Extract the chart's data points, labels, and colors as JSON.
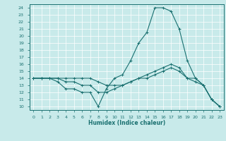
{
  "title": "",
  "xlabel": "Humidex (Indice chaleur)",
  "background_color": "#c8eaea",
  "grid_color": "#ffffff",
  "line_color": "#1a7070",
  "xlim": [
    -0.5,
    23.5
  ],
  "ylim": [
    9.5,
    24.5
  ],
  "xticks": [
    0,
    1,
    2,
    3,
    4,
    5,
    6,
    7,
    8,
    9,
    10,
    11,
    12,
    13,
    14,
    15,
    16,
    17,
    18,
    19,
    20,
    21,
    22,
    23
  ],
  "yticks": [
    10,
    11,
    12,
    13,
    14,
    15,
    16,
    17,
    18,
    19,
    20,
    21,
    22,
    23,
    24
  ],
  "series1_x": [
    0,
    1,
    2,
    3,
    4,
    5,
    6,
    7,
    8,
    9,
    10,
    11,
    12,
    13,
    14,
    15,
    16,
    17,
    18,
    19,
    20,
    21,
    22,
    23
  ],
  "series1_y": [
    14,
    14,
    14,
    13.5,
    12.5,
    12.5,
    12,
    12,
    10,
    12.5,
    14,
    14.5,
    16.5,
    19,
    20.5,
    24,
    24,
    23.5,
    21,
    16.5,
    14,
    13,
    11,
    10
  ],
  "series2_x": [
    0,
    1,
    2,
    3,
    4,
    5,
    6,
    7,
    8,
    9,
    10,
    11,
    12,
    13,
    14,
    15,
    16,
    17,
    18,
    19,
    20,
    21,
    22,
    23
  ],
  "series2_y": [
    14,
    14,
    14,
    14,
    13.5,
    13.5,
    13,
    13,
    12,
    12,
    12.5,
    13,
    13.5,
    14,
    14.5,
    15,
    15.5,
    16,
    15.5,
    14,
    13.5,
    13,
    11,
    10
  ],
  "series3_x": [
    0,
    1,
    2,
    3,
    4,
    5,
    6,
    7,
    8,
    9,
    10,
    11,
    12,
    13,
    14,
    15,
    16,
    17,
    18,
    19,
    20,
    21,
    22,
    23
  ],
  "series3_y": [
    14,
    14,
    14,
    14,
    14,
    14,
    14,
    14,
    13.5,
    13,
    13,
    13,
    13.5,
    14,
    14,
    14.5,
    15,
    15.5,
    15,
    14,
    14,
    13,
    11,
    10
  ],
  "tick_fontsize": 4.5,
  "xlabel_fontsize": 5.5
}
